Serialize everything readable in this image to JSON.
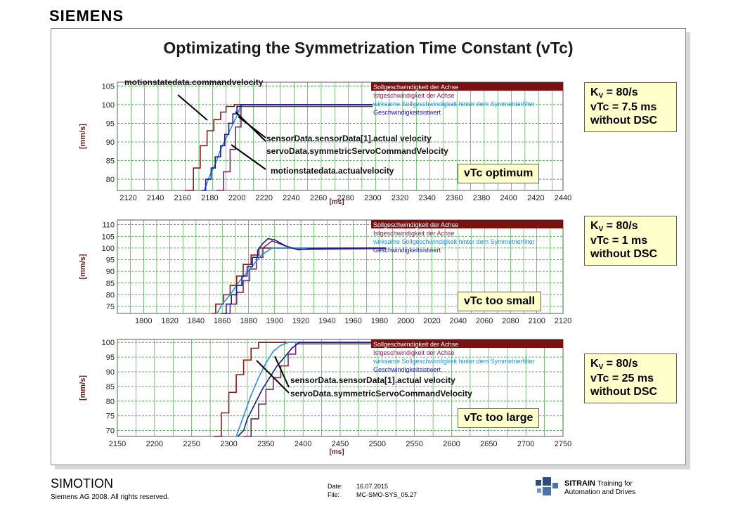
{
  "header": {
    "logo": "SIEMENS"
  },
  "slide": {
    "title": "Optimizating the Symmetrization Time Constant (vTc)"
  },
  "footer": {
    "product": "SIMOTION",
    "copyright": "Siemens AG 2008. All rights reserved.",
    "date_label": "Date:",
    "date_value": "16.07.2015",
    "file_label": "File:",
    "file_value": "MC-SMO-SYS_05.27",
    "brand": "SITRAIN",
    "brand_tail": "Training for",
    "brand_sub": "Automation and Drives"
  },
  "legend_labels": [
    "Sollgeschwindigkeit der Achse",
    "Istgeschwindigkeit der Achse",
    "wirksame Sollgeschwindigkeit hinter dem Symmetrierfilter",
    "Geschwindigkeitsistwert"
  ],
  "colors": {
    "command": "#8b1a1a",
    "actual": "#7a2a5a",
    "symm": "#2a8fd8",
    "measured": "#1a1a9a",
    "grid": "#2a9a2a",
    "legend_bg": "#7a1010"
  },
  "panels": [
    {
      "tag": "vTc  optimum",
      "info": {
        "kv": "K",
        "kv_sub": "V",
        "kv_val": " = 80/s",
        "vtc": "vTc = 7.5 ms",
        "dsc": "without DSC"
      },
      "annotations": [
        "motionstatedata.commandvelocity",
        "sensorData.sensorData[1].actual velocity",
        "servoData.symmetricServoCommandVelocity",
        "motionstatedata.actualvelocity"
      ]
    },
    {
      "tag": "vTc too small",
      "info": {
        "kv": "K",
        "kv_sub": "V",
        "kv_val": " = 80/s",
        "vtc": "vTc = 1 ms",
        "dsc": "without DSC"
      },
      "annotations": []
    },
    {
      "tag": "vTc too large",
      "info": {
        "kv": "K",
        "kv_sub": "V",
        "kv_val": " = 80/s",
        "vtc": "vTc = 25 ms",
        "dsc": "without DSC"
      },
      "annotations": [
        "sensorData.sensorData[1].actual velocity",
        "servoData.symmetricServoCommandVelocity"
      ]
    }
  ],
  "chart_data": [
    {
      "type": "line",
      "xlabel": "[ms]",
      "ylabel": "[mm/s]",
      "xlim": [
        2112,
        2440
      ],
      "ylim": [
        77,
        106
      ],
      "xticks": [
        2120,
        2140,
        2160,
        2180,
        2200,
        2220,
        2240,
        2260,
        2280,
        2300,
        2320,
        2340,
        2360,
        2380,
        2400,
        2420,
        2440
      ],
      "yticks": [
        80,
        85,
        90,
        95,
        100,
        105
      ],
      "series": [
        {
          "name": "Sollgeschwindigkeit der Achse",
          "x": [
            2162,
            2168,
            2168,
            2173,
            2173,
            2178,
            2178,
            2183,
            2183,
            2188,
            2188,
            2192,
            2192,
            2198,
            2198,
            2300
          ],
          "y": [
            77,
            77,
            83,
            83,
            89,
            89,
            93,
            93,
            96,
            96,
            98,
            98,
            99.5,
            99.5,
            100,
            100
          ]
        },
        {
          "name": "Istgeschwindigkeit der Achse",
          "x": [
            2185,
            2190,
            2190,
            2195,
            2195,
            2199,
            2199,
            2203,
            2203,
            2300
          ],
          "y": [
            77,
            77,
            82,
            82,
            88,
            88,
            94,
            94,
            99.5,
            99.5
          ]
        },
        {
          "name": "wirksame Sollgeschwindigkeit hinter dem Symmetrierfilter",
          "x": [
            2176,
            2180,
            2184,
            2188,
            2192,
            2196,
            2200,
            2202,
            2204,
            2210,
            2300
          ],
          "y": [
            77,
            81,
            84,
            88,
            91,
            94,
            97,
            99,
            100,
            100,
            100
          ]
        },
        {
          "name": "Geschwindigkeitsistwert",
          "x": [
            2174,
            2177,
            2177,
            2181,
            2181,
            2184,
            2184,
            2188,
            2188,
            2191,
            2191,
            2194,
            2194,
            2197,
            2197,
            2200,
            2200,
            2203,
            2203,
            2300
          ],
          "y": [
            77,
            77,
            80,
            80,
            83,
            83,
            86,
            86,
            89,
            89,
            92,
            92,
            95,
            95,
            97.5,
            97.5,
            99.5,
            99.5,
            100,
            100
          ]
        }
      ]
    },
    {
      "type": "line",
      "xlabel": "",
      "ylabel": "[mm/s]",
      "xlim": [
        1780,
        2120
      ],
      "ylim": [
        72,
        112
      ],
      "xticks": [
        1800,
        1820,
        1840,
        1860,
        1880,
        1900,
        1920,
        1940,
        1960,
        1980,
        2000,
        2020,
        2040,
        2060,
        2080,
        2100,
        2120
      ],
      "yticks": [
        75,
        80,
        85,
        90,
        95,
        100,
        105,
        110
      ],
      "series": [
        {
          "name": "Sollgeschwindigkeit der Achse",
          "x": [
            1852,
            1855,
            1855,
            1861,
            1861,
            1866,
            1866,
            1871,
            1871,
            1876,
            1876,
            1882,
            1882,
            1888,
            1888,
            1894,
            1894,
            1985
          ],
          "y": [
            72,
            72,
            76,
            76,
            80,
            80,
            84,
            84,
            88,
            88,
            93,
            93,
            97,
            97,
            100,
            100,
            100,
            100
          ]
        },
        {
          "name": "Istgeschwindigkeit der Achse",
          "x": [
            1862,
            1866,
            1866,
            1871,
            1871,
            1876,
            1876,
            1881,
            1881,
            1886,
            1886,
            1891,
            1891,
            1898,
            1903,
            1912,
            1924,
            1985
          ],
          "y": [
            72,
            72,
            76,
            76,
            81,
            81,
            86,
            86,
            91,
            91,
            96,
            96,
            100,
            103,
            102,
            100,
            99.4,
            99.8
          ]
        },
        {
          "name": "wirksame Sollgeschwindigkeit hinter dem Symmetrierfilter",
          "x": [
            1856,
            1860,
            1866,
            1872,
            1878,
            1884,
            1890,
            1898,
            1985
          ],
          "y": [
            72,
            76,
            80,
            85,
            89,
            93,
            97,
            100,
            100
          ]
        },
        {
          "name": "Geschwindigkeitsistwert",
          "x": [
            1859,
            1863,
            1863,
            1867,
            1867,
            1871,
            1871,
            1875,
            1875,
            1879,
            1879,
            1883,
            1883,
            1887,
            1887,
            1891,
            1895,
            1900,
            1908,
            1918,
            1928,
            1985
          ],
          "y": [
            72,
            72,
            76,
            76,
            80,
            80,
            84,
            84,
            88,
            88,
            92,
            92,
            96,
            96,
            99,
            102,
            104,
            103.5,
            101,
            99.2,
            99.8,
            100
          ]
        }
      ]
    },
    {
      "type": "line",
      "xlabel": "[ms]",
      "ylabel": "[mm/s]",
      "xlim": [
        2150,
        2750
      ],
      "ylim": [
        68,
        101
      ],
      "xticks": [
        2150,
        2200,
        2250,
        2300,
        2350,
        2400,
        2450,
        2500,
        2550,
        2600,
        2650,
        2700,
        2750
      ],
      "yticks": [
        70,
        75,
        80,
        85,
        90,
        95,
        100
      ],
      "series": [
        {
          "name": "Sollgeschwindigkeit der Achse",
          "x": [
            2280,
            2290,
            2290,
            2300,
            2300,
            2310,
            2310,
            2320,
            2320,
            2330,
            2330,
            2340,
            2340,
            2500
          ],
          "y": [
            68,
            68,
            76,
            76,
            83,
            83,
            89,
            89,
            94,
            94,
            98,
            98,
            100,
            100
          ]
        },
        {
          "name": "Istgeschwindigkeit der Achse",
          "x": [
            2320,
            2330,
            2330,
            2340,
            2340,
            2350,
            2350,
            2360,
            2360,
            2370,
            2370,
            2380,
            2380,
            2390,
            2390,
            2500
          ],
          "y": [
            68,
            68,
            74,
            74,
            79,
            79,
            84,
            84,
            88,
            88,
            92,
            92,
            96,
            96,
            99.5,
            99.5
          ]
        },
        {
          "name": "wirksame Sollgeschwindigkeit hinter dem Symmetrierfilter",
          "x": [
            2310,
            2320,
            2330,
            2340,
            2350,
            2360,
            2370,
            2380,
            2500
          ],
          "y": [
            68,
            75,
            82,
            88,
            93,
            97,
            99,
            100,
            100
          ]
        },
        {
          "name": "Geschwindigkeitsistwert",
          "x": [
            2312,
            2320,
            2325,
            2335,
            2345,
            2355,
            2365,
            2375,
            2385,
            2395,
            2500
          ],
          "y": [
            68,
            70,
            74,
            79,
            84,
            88,
            92,
            95,
            98,
            100,
            100
          ]
        }
      ]
    }
  ]
}
